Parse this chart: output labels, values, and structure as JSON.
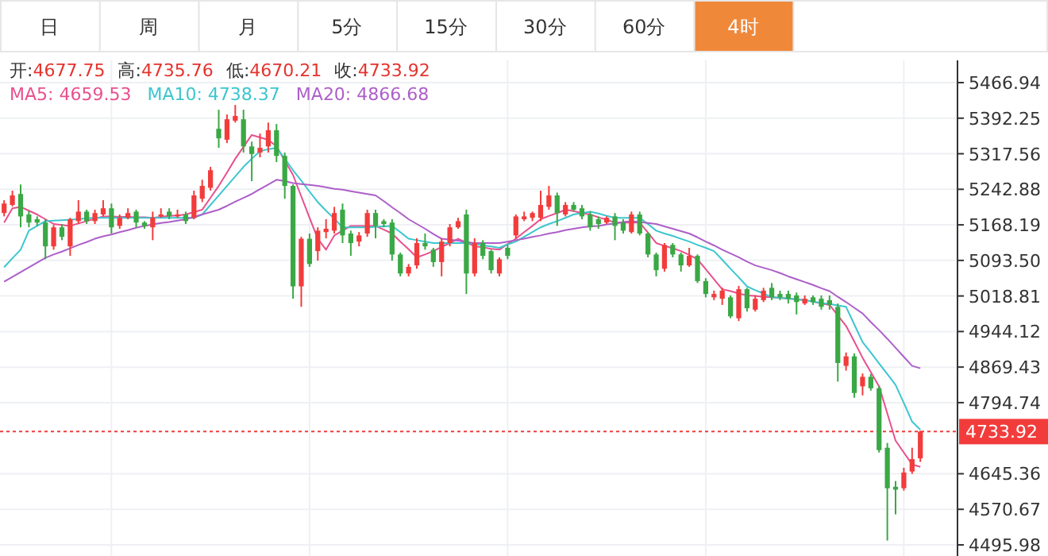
{
  "chart_data": {
    "type": "candlestick",
    "categories": [
      null,
      null,
      null,
      null,
      null,
      null,
      null,
      null,
      null,
      null,
      null,
      null,
      null,
      null,
      null,
      null,
      null,
      null,
      null,
      null,
      null,
      null,
      null,
      null,
      null,
      null,
      null,
      null,
      null,
      null,
      null,
      null,
      null,
      null,
      null,
      null,
      null,
      null,
      null,
      null,
      null,
      null,
      null,
      null,
      null,
      null,
      null,
      null,
      null,
      null,
      null,
      null,
      null,
      null,
      null,
      null,
      null,
      null,
      null,
      null,
      null,
      null,
      null,
      null,
      null,
      null,
      null,
      null,
      null,
      null,
      null,
      null,
      null,
      null,
      null,
      null,
      null,
      null,
      null,
      null,
      null,
      null,
      null,
      null,
      null,
      null,
      null,
      null,
      null,
      null,
      null,
      null,
      null,
      null,
      null,
      null,
      null,
      null,
      null,
      null,
      null,
      null,
      null,
      null,
      null,
      null,
      null,
      null,
      null,
      null,
      null,
      null,
      null,
      null,
      null,
      null
    ],
    "ohlc": [
      [
        5193,
        5220,
        5186,
        5213
      ],
      [
        5210,
        5240,
        5207,
        5230
      ],
      [
        5233,
        5253,
        5163,
        5186
      ],
      [
        5190,
        5197,
        5163,
        5173
      ],
      [
        5180,
        5186,
        5166,
        5173
      ],
      [
        5173,
        5180,
        5096,
        5123
      ],
      [
        5123,
        5168,
        5116,
        5163
      ],
      [
        5163,
        5170,
        5136,
        5143
      ],
      [
        5123,
        5183,
        5103,
        5180
      ],
      [
        5176,
        5220,
        5170,
        5196
      ],
      [
        5196,
        5200,
        5170,
        5176
      ],
      [
        5176,
        5200,
        5170,
        5193
      ],
      [
        5190,
        5220,
        5186,
        5203
      ],
      [
        5203,
        5213,
        5150,
        5163
      ],
      [
        5166,
        5190,
        5160,
        5183
      ],
      [
        5183,
        5203,
        5180,
        5193
      ],
      [
        5196,
        5200,
        5163,
        5173
      ],
      [
        5173,
        5176,
        5160,
        5166
      ],
      [
        5163,
        5196,
        5136,
        5183
      ],
      [
        5186,
        5203,
        5183,
        5190
      ],
      [
        5196,
        5203,
        5180,
        5186
      ],
      [
        5186,
        5200,
        5183,
        5190
      ],
      [
        5190,
        5196,
        5170,
        5176
      ],
      [
        5183,
        5240,
        5180,
        5230
      ],
      [
        5223,
        5263,
        5216,
        5250
      ],
      [
        5246,
        5290,
        5240,
        5283
      ],
      [
        5370,
        5410,
        5330,
        5350
      ],
      [
        5347,
        5400,
        5340,
        5390
      ],
      [
        5387,
        5420,
        5383,
        5397
      ],
      [
        5390,
        5410,
        5320,
        5333
      ],
      [
        5333,
        5343,
        5260,
        5317
      ],
      [
        5320,
        5360,
        5310,
        5330
      ],
      [
        5333,
        5383,
        5320,
        5367
      ],
      [
        5367,
        5380,
        5300,
        5313
      ],
      [
        5313,
        5320,
        5223,
        5250
      ],
      [
        5250,
        5253,
        5013,
        5039
      ],
      [
        5039,
        5143,
        4996,
        5139
      ],
      [
        5139,
        5150,
        5080,
        5086
      ],
      [
        5113,
        5163,
        5093,
        5156
      ],
      [
        5153,
        5180,
        5140,
        5160
      ],
      [
        5156,
        5206,
        5150,
        5193
      ],
      [
        5200,
        5213,
        5130,
        5146
      ],
      [
        5150,
        5156,
        5103,
        5130
      ],
      [
        5133,
        5153,
        5123,
        5146
      ],
      [
        5150,
        5200,
        5143,
        5193
      ],
      [
        5193,
        5200,
        5140,
        5166
      ],
      [
        5176,
        5180,
        5163,
        5170
      ],
      [
        5173,
        5180,
        5093,
        5106
      ],
      [
        5106,
        5110,
        5060,
        5066
      ],
      [
        5066,
        5086,
        5060,
        5080
      ],
      [
        5083,
        5140,
        5076,
        5130
      ],
      [
        5130,
        5150,
        5116,
        5123
      ],
      [
        5116,
        5120,
        5080,
        5090
      ],
      [
        5090,
        5140,
        5060,
        5133
      ],
      [
        5130,
        5170,
        5123,
        5163
      ],
      [
        5163,
        5183,
        5160,
        5176
      ],
      [
        5190,
        5200,
        5023,
        5066
      ],
      [
        5066,
        5140,
        5060,
        5130
      ],
      [
        5130,
        5136,
        5096,
        5103
      ],
      [
        5113,
        5116,
        5066,
        5073
      ],
      [
        5066,
        5100,
        5060,
        5096
      ],
      [
        5120,
        5126,
        5096,
        5103
      ],
      [
        5146,
        5190,
        5140,
        5186
      ],
      [
        5180,
        5196,
        5176,
        5186
      ],
      [
        5183,
        5196,
        5176,
        5193
      ],
      [
        5183,
        5240,
        5176,
        5210
      ],
      [
        5206,
        5250,
        5200,
        5230
      ],
      [
        5230,
        5236,
        5166,
        5193
      ],
      [
        5190,
        5216,
        5186,
        5210
      ],
      [
        5210,
        5216,
        5196,
        5200
      ],
      [
        5203,
        5210,
        5180,
        5186
      ],
      [
        5190,
        5196,
        5156,
        5163
      ],
      [
        5180,
        5186,
        5160,
        5170
      ],
      [
        5173,
        5186,
        5170,
        5183
      ],
      [
        5186,
        5193,
        5136,
        5166
      ],
      [
        5173,
        5180,
        5150,
        5156
      ],
      [
        5153,
        5196,
        5150,
        5190
      ],
      [
        5190,
        5196,
        5146,
        5150
      ],
      [
        5150,
        5153,
        5100,
        5106
      ],
      [
        5106,
        5110,
        5060,
        5073
      ],
      [
        5076,
        5130,
        5070,
        5126
      ],
      [
        5126,
        5130,
        5100,
        5106
      ],
      [
        5106,
        5110,
        5070,
        5083
      ],
      [
        5083,
        5120,
        5080,
        5103
      ],
      [
        5103,
        5106,
        5046,
        5050
      ],
      [
        5050,
        5056,
        5016,
        5023
      ],
      [
        5016,
        5030,
        5010,
        5023
      ],
      [
        5013,
        5036,
        5000,
        5030
      ],
      [
        5016,
        5020,
        4972,
        4976
      ],
      [
        4972,
        5040,
        4966,
        5033
      ],
      [
        5033,
        5036,
        4986,
        4993
      ],
      [
        4990,
        5020,
        4986,
        5013
      ],
      [
        5010,
        5036,
        5006,
        5030
      ],
      [
        5036,
        5046,
        5010,
        5016
      ],
      [
        5023,
        5030,
        5010,
        5016
      ],
      [
        5023,
        5030,
        5003,
        5013
      ],
      [
        5020,
        5026,
        4980,
        5006
      ],
      [
        5003,
        5020,
        5000,
        5013
      ],
      [
        5016,
        5020,
        5000,
        5006
      ],
      [
        5013,
        5020,
        4990,
        4996
      ],
      [
        5010,
        5020,
        4990,
        5000
      ],
      [
        4996,
        5003,
        4839,
        4878
      ],
      [
        4872,
        4900,
        4862,
        4892
      ],
      [
        4892,
        4898,
        4805,
        4815
      ],
      [
        4829,
        4856,
        4810,
        4849
      ],
      [
        4849,
        4855,
        4820,
        4825
      ],
      [
        4825,
        4830,
        4690,
        4695
      ],
      [
        4700,
        4710,
        4505,
        4615
      ],
      [
        4618,
        4630,
        4560,
        4612
      ],
      [
        4615,
        4658,
        4610,
        4648
      ],
      [
        4650,
        4700,
        4645,
        4676
      ],
      [
        4677.75,
        4735.76,
        4670.21,
        4733.92
      ],
      null,
      null,
      null,
      null
    ],
    "series": [
      {
        "name": "MA5: 4659.53",
        "type": "line",
        "color": "#e8508f",
        "values": [
          5173,
          5203,
          5206,
          5198,
          5190,
          5180,
          5170,
          5168,
          5166,
          5171,
          5176,
          5181,
          5186,
          5186,
          5185,
          5185,
          5184,
          5184,
          5183,
          5185,
          5187,
          5188,
          5190,
          5195,
          5200,
          5225,
          5250,
          5278,
          5307,
          5332,
          5357,
          5352,
          5347,
          5333,
          5303,
          5273,
          5228,
          5183,
          5139,
          5116,
          5146,
          5156,
          5166,
          5166,
          5166,
          5166,
          5158,
          5150,
          5133,
          5117,
          5100,
          5106,
          5113,
          5122,
          5130,
          5139,
          5131,
          5123,
          5121,
          5118,
          5116,
          5128,
          5139,
          5153,
          5166,
          5180,
          5187,
          5193,
          5200,
          5197,
          5193,
          5190,
          5184,
          5179,
          5173,
          5173,
          5173,
          5173,
          5152,
          5130,
          5124,
          5119,
          5113,
          5105,
          5096,
          5075,
          5054,
          5033,
          5029,
          5024,
          5020,
          5019,
          5017,
          5016,
          5015,
          5013,
          5012,
          5010,
          5007,
          5003,
          5000,
          4978,
          4956,
          4923,
          4889,
          4859,
          4829,
          4772,
          4715,
          4690,
          4665,
          4660,
          null,
          null,
          null,
          null
        ]
      },
      {
        "name": "MA10: 4738.37",
        "type": "line",
        "color": "#3cc6cf",
        "values": [
          5079,
          5098,
          5116,
          5156,
          5166,
          5176,
          5177,
          5178,
          5179,
          5180,
          5182,
          5183,
          5183,
          5183,
          5183,
          5183,
          5183,
          5183,
          5183,
          5183,
          5183,
          5183,
          5183,
          5183,
          5190,
          5210,
          5230,
          5250,
          5270,
          5290,
          5307,
          5323,
          5327,
          5330,
          5307,
          5283,
          5261,
          5238,
          5216,
          5198,
          5181,
          5163,
          5163,
          5163,
          5163,
          5164,
          5165,
          5166,
          5153,
          5139,
          5136,
          5133,
          5130,
          5130,
          5130,
          5130,
          5130,
          5128,
          5125,
          5123,
          5120,
          5127,
          5133,
          5143,
          5153,
          5163,
          5170,
          5176,
          5183,
          5190,
          5193,
          5196,
          5192,
          5187,
          5183,
          5183,
          5183,
          5183,
          5170,
          5156,
          5150,
          5145,
          5139,
          5133,
          5126,
          5120,
          5113,
          5095,
          5076,
          5058,
          5039,
          5031,
          5024,
          5016,
          5015,
          5013,
          5012,
          5010,
          5007,
          5004,
          5002,
          4999,
          4996,
          4959,
          4922,
          4900,
          4877,
          4855,
          4832,
          4794,
          4755,
          4738,
          null,
          null,
          null,
          null
        ]
      },
      {
        "name": "MA20: 4866.68",
        "type": "line",
        "color": "#ad5fc9",
        "values": [
          5049,
          5059,
          5069,
          5079,
          5089,
          5099,
          5106,
          5112,
          5119,
          5126,
          5132,
          5139,
          5144,
          5148,
          5153,
          5157,
          5162,
          5166,
          5169,
          5172,
          5174,
          5177,
          5180,
          5185,
          5190,
          5195,
          5200,
          5208,
          5217,
          5225,
          5233,
          5243,
          5253,
          5263,
          5260,
          5256,
          5254,
          5252,
          5250,
          5247,
          5244,
          5242,
          5239,
          5236,
          5233,
          5230,
          5218,
          5205,
          5193,
          5180,
          5170,
          5160,
          5149,
          5139,
          5137,
          5135,
          5132,
          5130,
          5130,
          5130,
          5130,
          5133,
          5136,
          5139,
          5143,
          5146,
          5150,
          5153,
          5157,
          5160,
          5163,
          5165,
          5166,
          5169,
          5171,
          5174,
          5176,
          5174,
          5172,
          5170,
          5165,
          5160,
          5155,
          5150,
          5142,
          5133,
          5125,
          5116,
          5108,
          5100,
          5091,
          5083,
          5078,
          5073,
          5067,
          5060,
          5054,
          5048,
          5042,
          5035,
          5029,
          5017,
          5006,
          4994,
          4982,
          4964,
          4947,
          4929,
          4910,
          4891,
          4872,
          4867,
          null,
          null,
          null,
          null
        ]
      }
    ],
    "ylim": [
      4472.6,
      5513.7
    ],
    "yticks": [
      5466.94,
      5392.25,
      5317.56,
      5242.88,
      5168.19,
      {
        "value": 5093.5,
        "label": "5093.50"
      },
      5018.81,
      4944.12,
      4869.43,
      4794.74,
      4645.36,
      4570.67,
      4495.98
    ],
    "grid": true,
    "legend": "top left",
    "ref_lines": [
      {
        "axis": "y",
        "value": 4733.92,
        "label": "4733.92",
        "color": "#f23c3c",
        "line_style": "dotted"
      }
    ],
    "annotations": [
      "日",
      "周",
      "月",
      "5分",
      "15分",
      "30分",
      "60分",
      "4时",
      "开:4677.75",
      "高:4735.76",
      "低:4670.21",
      "收:4733.92"
    ]
  }
}
